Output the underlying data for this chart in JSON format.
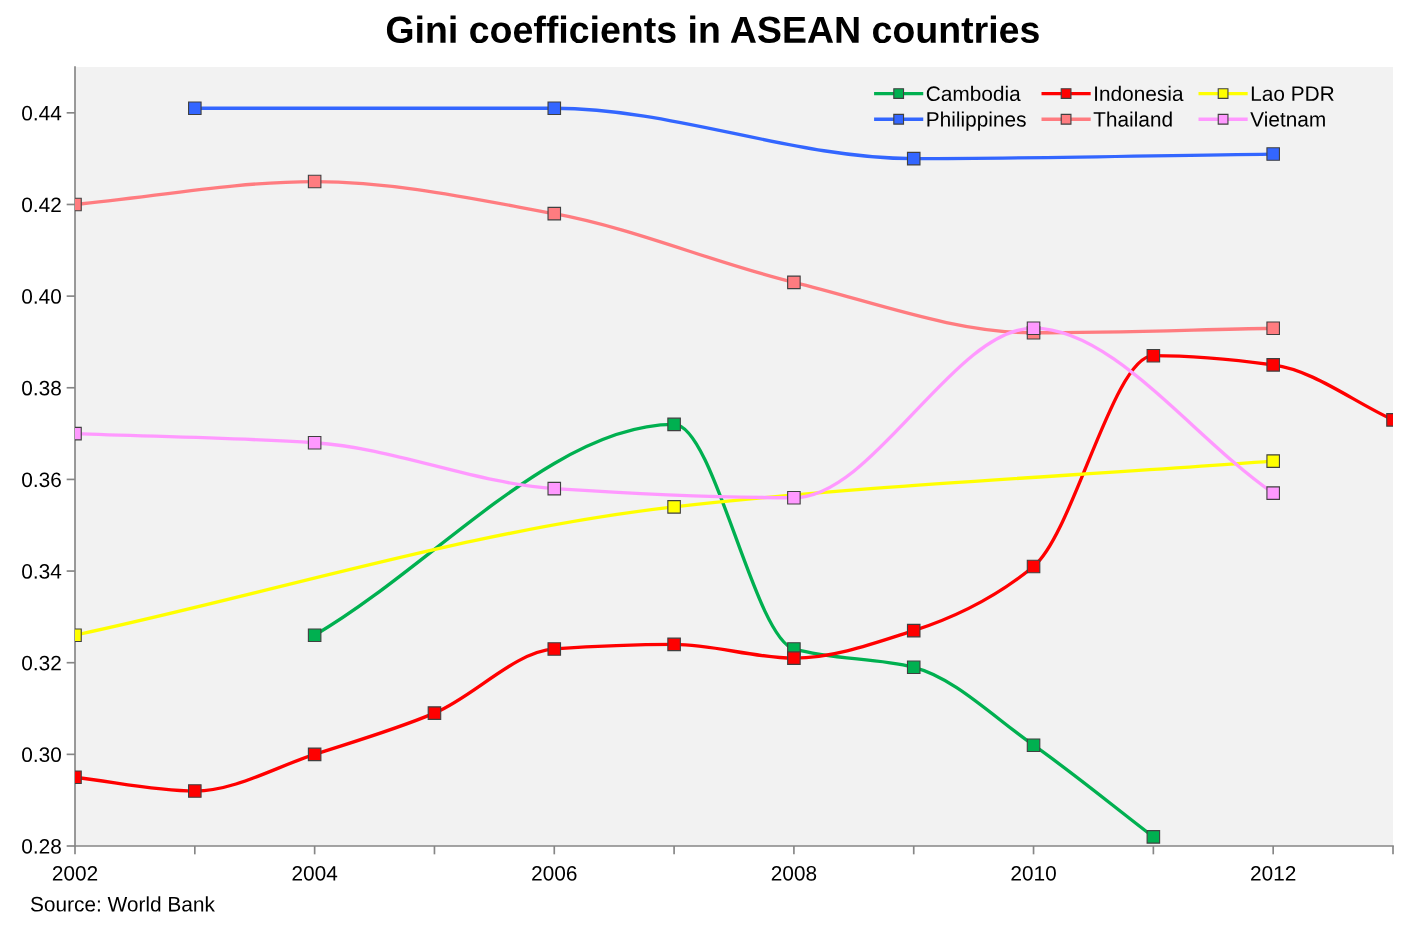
{
  "chart_data": {
    "type": "line",
    "title": "Gini coefficients in ASEAN countries",
    "annotations": [
      "Source: World Bank"
    ],
    "series": [
      {
        "name": "Cambodia",
        "color": "#00b050",
        "x": [
          2004,
          2007,
          2008,
          2009,
          2010,
          2011
        ],
        "values": [
          0.326,
          0.372,
          0.323,
          0.319,
          0.302,
          0.282
        ]
      },
      {
        "name": "Indonesia",
        "color": "#ff0000",
        "x": [
          2002,
          2003,
          2004,
          2005,
          2006,
          2007,
          2008,
          2009,
          2010,
          2011,
          2012,
          2013
        ],
        "values": [
          0.295,
          0.292,
          0.3,
          0.309,
          0.323,
          0.324,
          0.321,
          0.327,
          0.341,
          0.387,
          0.385,
          0.373
        ]
      },
      {
        "name": "Lao PDR",
        "color": "#ffff00",
        "x": [
          2002,
          2007,
          2012
        ],
        "values": [
          0.326,
          0.354,
          0.364
        ]
      },
      {
        "name": "Philippines",
        "color": "#3366ff",
        "x": [
          2003,
          2006,
          2009,
          2012
        ],
        "values": [
          0.441,
          0.441,
          0.43,
          0.431
        ]
      },
      {
        "name": "Thailand",
        "color": "#ff7c80",
        "x": [
          2002,
          2004,
          2006,
          2008,
          2010,
          2012
        ],
        "values": [
          0.42,
          0.425,
          0.418,
          0.403,
          0.392,
          0.393
        ]
      },
      {
        "name": "Vietnam",
        "color": "#ff99ff",
        "x": [
          2002,
          2004,
          2006,
          2008,
          2010,
          2012
        ],
        "values": [
          0.37,
          0.368,
          0.358,
          0.356,
          0.393,
          0.357
        ]
      }
    ],
    "xlim": [
      2002,
      2013
    ],
    "xticks": [
      2002,
      {
        "value": 2003,
        "label": null
      },
      2004,
      {
        "value": 2005,
        "label": null
      },
      2006,
      {
        "value": 2007,
        "label": null
      },
      2008,
      {
        "value": 2009,
        "label": null
      },
      2010,
      {
        "value": 2011,
        "label": null
      },
      2012,
      {
        "value": 2013,
        "label": null
      }
    ],
    "ylim": [
      0.28,
      0.45
    ],
    "yticks": [
      {
        "value": 0.28,
        "label": "0.28"
      },
      {
        "value": 0.3,
        "label": "0.30"
      },
      {
        "value": 0.32,
        "label": "0.32"
      },
      {
        "value": 0.34,
        "label": "0.34"
      },
      {
        "value": 0.36,
        "label": "0.36"
      },
      {
        "value": 0.38,
        "label": "0.38"
      },
      {
        "value": 0.4,
        "label": "0.40"
      },
      {
        "value": 0.42,
        "label": "0.42"
      },
      {
        "value": 0.44,
        "label": "0.44"
      }
    ],
    "grid": false,
    "legend": "top right",
    "marker": "square",
    "line_style": "solid"
  }
}
